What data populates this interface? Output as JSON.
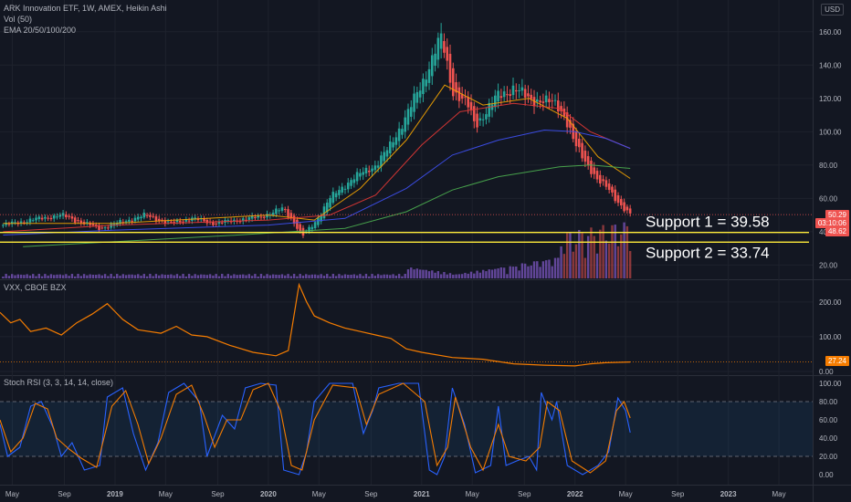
{
  "header": {
    "title": "ARK Innovation ETF, 1W, AMEX, Heikin Ashi",
    "vol": "Vol (50)",
    "ema": "EMA 20/50/100/200",
    "currency": "USD"
  },
  "vxx_legend": "VXX, CBOE BZX",
  "stoch_legend": "Stoch RSI (3, 3, 14, 14, close)",
  "price_tags": {
    "last": "50.29",
    "countdown": "03:10:06",
    "low": "48.62",
    "vxx": "27.24"
  },
  "colors": {
    "bg": "#131722",
    "up": "#26a69a",
    "down": "#ef5350",
    "grid": "#1e222d",
    "ema20": "#f7a600",
    "ema50": "#e53935",
    "ema100": "#3f51f5",
    "ema200": "#4caf50",
    "vxx": "#f57c00",
    "stochK": "#2962ff",
    "stochD": "#f57c00",
    "support": "#ffeb3b",
    "vol": "#7e57c2"
  },
  "chart_data": [
    {
      "type": "candlestick",
      "title": "ARK Innovation ETF, 1W, AMEX, Heikin Ashi",
      "x_ticks": [
        "May",
        "Sep",
        "2019",
        "May",
        "Sep",
        "2020",
        "May",
        "Sep",
        "2021",
        "May",
        "Sep",
        "2022",
        "May",
        "Sep",
        "2023",
        "May"
      ],
      "x_range": [
        2018.25,
        2023.55
      ],
      "y_ticks": [
        20,
        40,
        60,
        80,
        100,
        120,
        140,
        160
      ],
      "ylim": [
        12,
        167
      ],
      "close_anchors": [
        [
          2018.27,
          44
        ],
        [
          2018.45,
          47
        ],
        [
          2018.65,
          50
        ],
        [
          2018.8,
          45
        ],
        [
          2018.9,
          42
        ],
        [
          2019.05,
          46
        ],
        [
          2019.2,
          50
        ],
        [
          2019.35,
          45
        ],
        [
          2019.5,
          48
        ],
        [
          2019.65,
          45
        ],
        [
          2019.8,
          47
        ],
        [
          2019.95,
          49
        ],
        [
          2020.1,
          54
        ],
        [
          2020.18,
          44
        ],
        [
          2020.22,
          37
        ],
        [
          2020.3,
          45
        ],
        [
          2020.4,
          60
        ],
        [
          2020.55,
          72
        ],
        [
          2020.7,
          80
        ],
        [
          2020.8,
          92
        ],
        [
          2020.9,
          110
        ],
        [
          2021.0,
          128
        ],
        [
          2021.1,
          152
        ],
        [
          2021.13,
          156
        ],
        [
          2021.2,
          125
        ],
        [
          2021.3,
          116
        ],
        [
          2021.35,
          104
        ],
        [
          2021.42,
          112
        ],
        [
          2021.5,
          122
        ],
        [
          2021.6,
          126
        ],
        [
          2021.7,
          120
        ],
        [
          2021.8,
          118
        ],
        [
          2021.88,
          117
        ],
        [
          2021.93,
          110
        ],
        [
          2022.0,
          92
        ],
        [
          2022.1,
          78
        ],
        [
          2022.15,
          70
        ],
        [
          2022.22,
          66
        ],
        [
          2022.28,
          58
        ],
        [
          2022.33,
          52
        ],
        [
          2022.36,
          50.29
        ]
      ],
      "ema": [
        {
          "name": "EMA 20",
          "points": [
            [
              2018.27,
              45
            ],
            [
              2019.0,
              45
            ],
            [
              2020.0,
              50
            ],
            [
              2020.3,
              47
            ],
            [
              2020.6,
              66
            ],
            [
              2020.9,
              95
            ],
            [
              2021.15,
              128
            ],
            [
              2021.4,
              116
            ],
            [
              2021.7,
              120
            ],
            [
              2021.95,
              108
            ],
            [
              2022.15,
              85
            ],
            [
              2022.36,
              72
            ]
          ]
        },
        {
          "name": "EMA 50",
          "points": [
            [
              2018.27,
              40
            ],
            [
              2019.0,
              44
            ],
            [
              2020.0,
              47
            ],
            [
              2020.4,
              50
            ],
            [
              2020.7,
              62
            ],
            [
              2021.0,
              92
            ],
            [
              2021.25,
              112
            ],
            [
              2021.6,
              117
            ],
            [
              2021.9,
              114
            ],
            [
              2022.1,
              100
            ],
            [
              2022.36,
              90
            ]
          ]
        },
        {
          "name": "EMA 100",
          "points": [
            [
              2018.27,
              38
            ],
            [
              2019.0,
              41
            ],
            [
              2020.0,
              44
            ],
            [
              2020.5,
              48
            ],
            [
              2020.9,
              66
            ],
            [
              2021.2,
              86
            ],
            [
              2021.5,
              95
            ],
            [
              2021.8,
              101
            ],
            [
              2022.0,
              100
            ],
            [
              2022.2,
              96
            ],
            [
              2022.36,
              90
            ]
          ]
        },
        {
          "name": "EMA 200",
          "points": [
            [
              2018.4,
              31
            ],
            [
              2019.0,
              34
            ],
            [
              2019.8,
              38
            ],
            [
              2020.5,
              42
            ],
            [
              2020.9,
              52
            ],
            [
              2021.2,
              65
            ],
            [
              2021.5,
              73
            ],
            [
              2021.9,
              79
            ],
            [
              2022.1,
              80
            ],
            [
              2022.36,
              78
            ]
          ]
        }
      ],
      "support_levels": [
        {
          "label": "Support 1 = 39.58",
          "value": 39.58
        },
        {
          "label": "Support 2 = 33.74",
          "value": 33.74
        }
      ],
      "last_price": 50.29
    },
    {
      "type": "line",
      "title": "VXX, CBOE BZX",
      "y_ticks": [
        0,
        100,
        200
      ],
      "y_tick_labels": [
        "0.00",
        "100.00",
        "200.00"
      ],
      "ylim": [
        -8,
        260
      ],
      "points": [
        [
          2018.25,
          170
        ],
        [
          2018.32,
          140
        ],
        [
          2018.38,
          150
        ],
        [
          2018.45,
          115
        ],
        [
          2018.55,
          125
        ],
        [
          2018.65,
          105
        ],
        [
          2018.75,
          140
        ],
        [
          2018.85,
          165
        ],
        [
          2018.95,
          195
        ],
        [
          2019.05,
          150
        ],
        [
          2019.15,
          120
        ],
        [
          2019.3,
          110
        ],
        [
          2019.4,
          130
        ],
        [
          2019.5,
          105
        ],
        [
          2019.6,
          100
        ],
        [
          2019.75,
          75
        ],
        [
          2019.9,
          55
        ],
        [
          2020.05,
          45
        ],
        [
          2020.13,
          60
        ],
        [
          2020.2,
          250
        ],
        [
          2020.25,
          200
        ],
        [
          2020.3,
          160
        ],
        [
          2020.4,
          140
        ],
        [
          2020.5,
          125
        ],
        [
          2020.6,
          115
        ],
        [
          2020.7,
          105
        ],
        [
          2020.8,
          95
        ],
        [
          2020.9,
          65
        ],
        [
          2021.0,
          55
        ],
        [
          2021.2,
          40
        ],
        [
          2021.4,
          35
        ],
        [
          2021.6,
          22
        ],
        [
          2021.8,
          18
        ],
        [
          2022.0,
          16
        ],
        [
          2022.1,
          22
        ],
        [
          2022.2,
          25
        ],
        [
          2022.36,
          27.24
        ]
      ],
      "last_value": 27.24
    },
    {
      "type": "line",
      "title": "Stoch RSI (3, 3, 14, 14, close)",
      "y_ticks": [
        0,
        20,
        40,
        60,
        80,
        100
      ],
      "y_tick_labels": [
        "0.00",
        "20.00",
        "40.00",
        "60.00",
        "80.00",
        "100.00"
      ],
      "ylim": [
        -10,
        108
      ],
      "band": [
        20,
        80
      ],
      "series": [
        {
          "name": "%K",
          "points": [
            [
              2018.25,
              55
            ],
            [
              2018.3,
              20
            ],
            [
              2018.38,
              30
            ],
            [
              2018.45,
              75
            ],
            [
              2018.52,
              80
            ],
            [
              2018.6,
              50
            ],
            [
              2018.65,
              20
            ],
            [
              2018.72,
              35
            ],
            [
              2018.8,
              5
            ],
            [
              2018.9,
              10
            ],
            [
              2018.95,
              85
            ],
            [
              2019.05,
              95
            ],
            [
              2019.12,
              45
            ],
            [
              2019.2,
              5
            ],
            [
              2019.28,
              35
            ],
            [
              2019.35,
              90
            ],
            [
              2019.45,
              100
            ],
            [
              2019.55,
              80
            ],
            [
              2019.6,
              20
            ],
            [
              2019.7,
              65
            ],
            [
              2019.78,
              50
            ],
            [
              2019.85,
              95
            ],
            [
              2019.95,
              100
            ],
            [
              2020.05,
              98
            ],
            [
              2020.1,
              5
            ],
            [
              2020.2,
              0
            ],
            [
              2020.25,
              25
            ],
            [
              2020.3,
              80
            ],
            [
              2020.4,
              100
            ],
            [
              2020.55,
              100
            ],
            [
              2020.62,
              45
            ],
            [
              2020.68,
              70
            ],
            [
              2020.72,
              95
            ],
            [
              2020.85,
              100
            ],
            [
              2020.98,
              100
            ],
            [
              2021.05,
              5
            ],
            [
              2021.1,
              0
            ],
            [
              2021.15,
              20
            ],
            [
              2021.2,
              95
            ],
            [
              2021.28,
              55
            ],
            [
              2021.35,
              2
            ],
            [
              2021.45,
              10
            ],
            [
              2021.5,
              75
            ],
            [
              2021.55,
              10
            ],
            [
              2021.62,
              15
            ],
            [
              2021.7,
              20
            ],
            [
              2021.75,
              5
            ],
            [
              2021.78,
              90
            ],
            [
              2021.85,
              60
            ],
            [
              2021.88,
              80
            ],
            [
              2021.95,
              10
            ],
            [
              2022.05,
              0
            ],
            [
              2022.15,
              10
            ],
            [
              2022.22,
              25
            ],
            [
              2022.28,
              84
            ],
            [
              2022.33,
              70
            ],
            [
              2022.36,
              46
            ]
          ]
        },
        {
          "name": "%D",
          "points": [
            [
              2018.25,
              60
            ],
            [
              2018.32,
              25
            ],
            [
              2018.4,
              40
            ],
            [
              2018.48,
              78
            ],
            [
              2018.56,
              72
            ],
            [
              2018.62,
              40
            ],
            [
              2018.7,
              28
            ],
            [
              2018.78,
              18
            ],
            [
              2018.88,
              8
            ],
            [
              2018.98,
              75
            ],
            [
              2019.07,
              92
            ],
            [
              2019.15,
              55
            ],
            [
              2019.22,
              12
            ],
            [
              2019.3,
              40
            ],
            [
              2019.4,
              88
            ],
            [
              2019.5,
              98
            ],
            [
              2019.58,
              65
            ],
            [
              2019.65,
              30
            ],
            [
              2019.73,
              60
            ],
            [
              2019.82,
              60
            ],
            [
              2019.9,
              93
            ],
            [
              2020.0,
              100
            ],
            [
              2020.08,
              70
            ],
            [
              2020.15,
              10
            ],
            [
              2020.22,
              5
            ],
            [
              2020.3,
              60
            ],
            [
              2020.42,
              98
            ],
            [
              2020.57,
              95
            ],
            [
              2020.64,
              55
            ],
            [
              2020.72,
              88
            ],
            [
              2020.88,
              100
            ],
            [
              2021.02,
              80
            ],
            [
              2021.1,
              10
            ],
            [
              2021.17,
              30
            ],
            [
              2021.22,
              85
            ],
            [
              2021.32,
              30
            ],
            [
              2021.4,
              5
            ],
            [
              2021.5,
              55
            ],
            [
              2021.57,
              20
            ],
            [
              2021.68,
              15
            ],
            [
              2021.77,
              30
            ],
            [
              2021.82,
              80
            ],
            [
              2021.9,
              70
            ],
            [
              2021.98,
              15
            ],
            [
              2022.1,
              2
            ],
            [
              2022.2,
              15
            ],
            [
              2022.27,
              70
            ],
            [
              2022.32,
              80
            ],
            [
              2022.36,
              62
            ]
          ]
        }
      ]
    }
  ]
}
